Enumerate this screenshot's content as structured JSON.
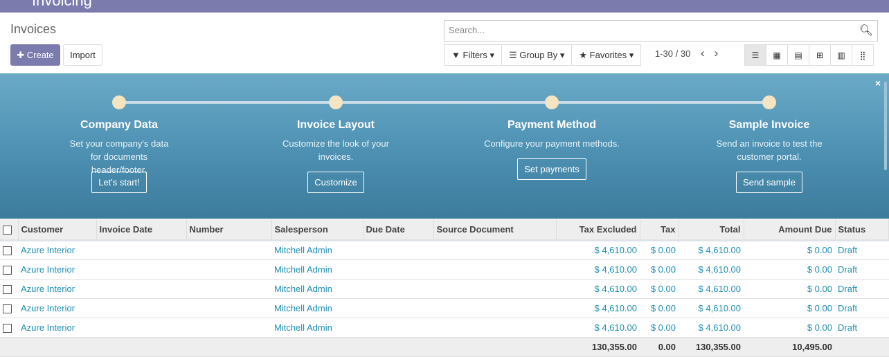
{
  "app": {
    "title": "Invoicing"
  },
  "control": {
    "title": "Invoices",
    "create": "Create",
    "import": "Import",
    "search_placeholder": "Search...",
    "filters": "Filters",
    "group_by": "Group By",
    "favorites": "Favorites",
    "pager": "1-30 / 30"
  },
  "views": [
    "list-icon",
    "kanban-icon",
    "calendar-icon",
    "pivot-icon",
    "graph-icon",
    "grid-icon"
  ],
  "onboarding": {
    "close": "×",
    "steps": [
      {
        "title": "Company Data",
        "desc": "Set your company's data for documents header/footer.",
        "button": "Let's start!"
      },
      {
        "title": "Invoice Layout",
        "desc": "Customize the look of your invoices.",
        "button": "Customize"
      },
      {
        "title": "Payment Method",
        "desc": "Configure your payment methods.",
        "button": "Set payments"
      },
      {
        "title": "Sample Invoice",
        "desc": "Send an invoice to test the customer portal.",
        "button": "Send sample"
      }
    ]
  },
  "table": {
    "headers": [
      "Customer",
      "Invoice Date",
      "Number",
      "Salesperson",
      "Due Date",
      "Source Document",
      "Tax Excluded",
      "Tax",
      "Total",
      "Amount Due",
      "Status"
    ],
    "rows": [
      {
        "customer": "Azure Interior",
        "salesperson": "Mitchell Admin",
        "tax_excluded": "$ 4,610.00",
        "tax": "$ 0.00",
        "total": "$ 4,610.00",
        "amount_due": "$ 0.00",
        "status": "Draft"
      },
      {
        "customer": "Azure Interior",
        "salesperson": "Mitchell Admin",
        "tax_excluded": "$ 4,610.00",
        "tax": "$ 0.00",
        "total": "$ 4,610.00",
        "amount_due": "$ 0.00",
        "status": "Draft"
      },
      {
        "customer": "Azure Interior",
        "salesperson": "Mitchell Admin",
        "tax_excluded": "$ 4,610.00",
        "tax": "$ 0.00",
        "total": "$ 4,610.00",
        "amount_due": "$ 0.00",
        "status": "Draft"
      },
      {
        "customer": "Azure Interior",
        "salesperson": "Mitchell Admin",
        "tax_excluded": "$ 4,610.00",
        "tax": "$ 0.00",
        "total": "$ 4,610.00",
        "amount_due": "$ 0.00",
        "status": "Draft"
      },
      {
        "customer": "Azure Interior",
        "salesperson": "Mitchell Admin",
        "tax_excluded": "$ 4,610.00",
        "tax": "$ 0.00",
        "total": "$ 4,610.00",
        "amount_due": "$ 0.00",
        "status": "Draft"
      }
    ],
    "totals": {
      "tax_excluded": "130,355.00",
      "tax": "0.00",
      "total": "130,355.00",
      "amount_due": "10,495.00"
    }
  }
}
